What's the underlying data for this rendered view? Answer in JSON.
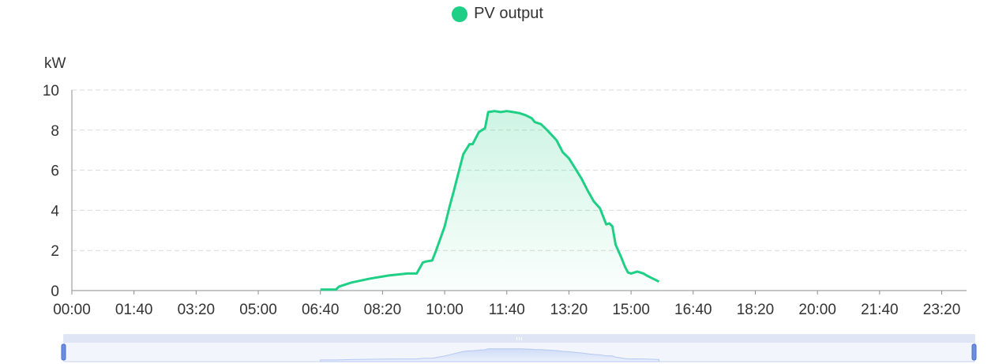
{
  "legend": {
    "label": "PV output",
    "color": "#1fcf85"
  },
  "chart_data": {
    "type": "area",
    "title": "",
    "xlabel": "",
    "ylabel": "kW",
    "ylim": [
      0,
      10
    ],
    "yticks": [
      "0",
      "2",
      "4",
      "6",
      "8",
      "10"
    ],
    "xlim": [
      "00:00",
      "24:00"
    ],
    "xticks": [
      "00:00",
      "01:40",
      "03:20",
      "05:00",
      "06:40",
      "08:20",
      "10:00",
      "11:40",
      "13:20",
      "15:00",
      "16:40",
      "18:20",
      "20:00",
      "21:40",
      "23:20"
    ],
    "grid": true,
    "legend_position": "top-center",
    "series": [
      {
        "name": "PV output",
        "color": "#1fcf85",
        "x": [
          "06:40",
          "07:05",
          "07:10",
          "07:30",
          "08:00",
          "08:30",
          "09:00",
          "09:15",
          "09:25",
          "09:30",
          "09:40",
          "09:45",
          "09:52",
          "10:00",
          "10:08",
          "10:15",
          "10:20",
          "10:30",
          "10:40",
          "10:45",
          "10:55",
          "11:05",
          "11:10",
          "11:15",
          "11:20",
          "11:30",
          "11:40",
          "11:50",
          "12:00",
          "12:10",
          "12:20",
          "12:25",
          "12:35",
          "12:45",
          "13:00",
          "13:10",
          "13:20",
          "13:30",
          "13:40",
          "13:50",
          "14:00",
          "14:10",
          "14:20",
          "14:25",
          "14:30",
          "14:35",
          "14:45",
          "14:50",
          "14:55",
          "15:00",
          "15:10",
          "15:20",
          "15:25",
          "15:35",
          "15:45"
        ],
        "values": [
          0.05,
          0.05,
          0.2,
          0.4,
          0.6,
          0.75,
          0.85,
          0.85,
          1.4,
          1.45,
          1.5,
          1.9,
          2.5,
          3.2,
          4.2,
          5.0,
          5.6,
          6.8,
          7.3,
          7.3,
          7.9,
          8.1,
          8.9,
          8.92,
          8.95,
          8.9,
          8.95,
          8.9,
          8.85,
          8.75,
          8.6,
          8.4,
          8.3,
          8.0,
          7.5,
          6.9,
          6.6,
          6.1,
          5.6,
          5.0,
          4.45,
          4.1,
          3.3,
          3.35,
          3.2,
          2.3,
          1.6,
          1.2,
          0.9,
          0.85,
          0.95,
          0.85,
          0.75,
          0.6,
          0.45
        ]
      }
    ],
    "zoom_range": [
      0,
      100
    ]
  }
}
